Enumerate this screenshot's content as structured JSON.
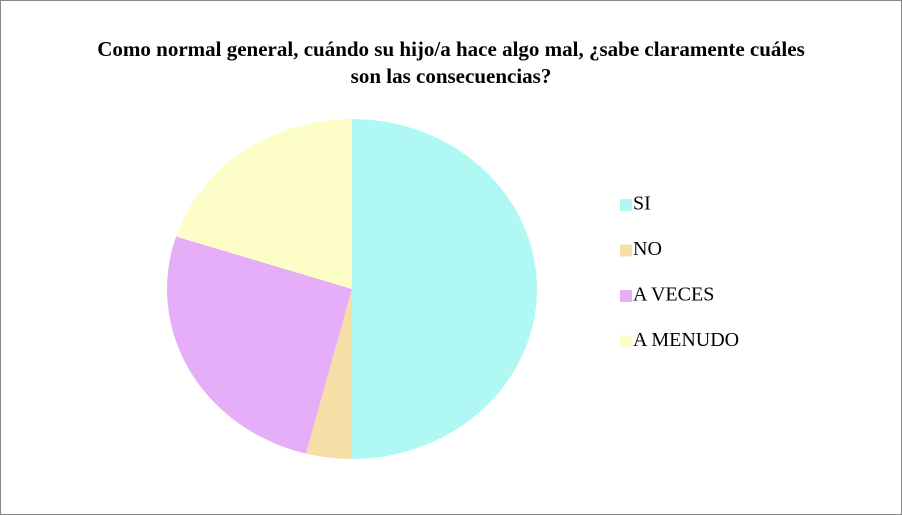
{
  "chart_data": {
    "type": "pie",
    "title": "Como normal general, cuándo su hijo/a hace algo mal, ¿sabe claramente cuáles son las consecuencias?",
    "categories": [
      "SI",
      "NO",
      "A VECES",
      "A MENUDO"
    ],
    "values": [
      50,
      4,
      26,
      20
    ],
    "colors": [
      "#aff8f4",
      "#f6dfa6",
      "#e6aef9",
      "#fdfdc8"
    ],
    "legend": "right"
  }
}
